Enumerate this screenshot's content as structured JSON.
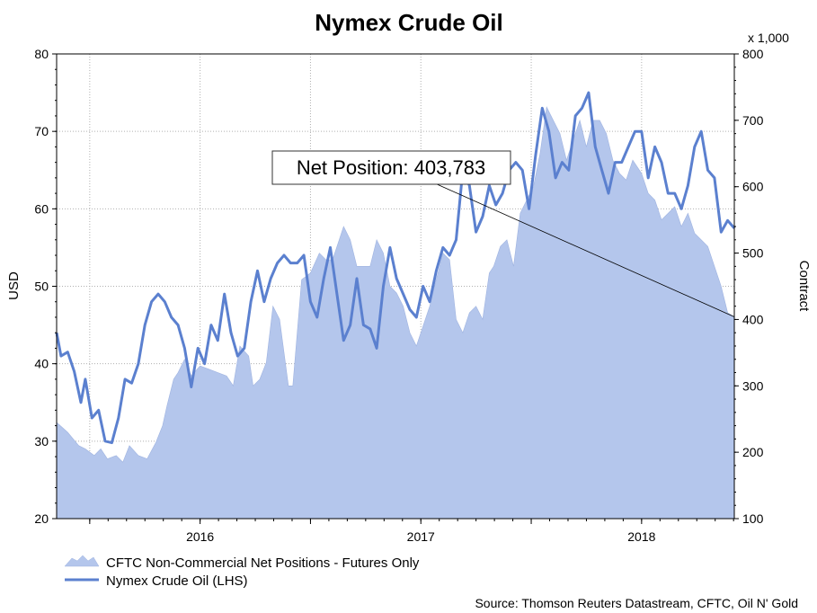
{
  "chart_data": {
    "type": "line",
    "title": "Nymex Crude Oil",
    "y_left_label": "USD",
    "y_right_label": "Contract",
    "y_right_multiplier": "x 1,000",
    "y_left_lim": [
      20,
      80
    ],
    "y_right_lim": [
      100,
      800
    ],
    "y_left_ticks": [
      "20",
      "30",
      "40",
      "50",
      "60",
      "70",
      "80"
    ],
    "y_right_ticks": [
      "100",
      "200",
      "300",
      "400",
      "500",
      "600",
      "700",
      "800"
    ],
    "x_lim": [
      2015.35,
      2018.42
    ],
    "x_ticks": [
      {
        "value": 2016.0,
        "label": "2016"
      },
      {
        "value": 2017.0,
        "label": "2017"
      },
      {
        "value": 2018.0,
        "label": "2018"
      }
    ],
    "x_grid": [
      2015.5,
      2016.0,
      2016.5,
      2017.0,
      2017.5,
      2018.0
    ],
    "grid": true,
    "legend_position": "bottom-left",
    "series": [
      {
        "name": "CFTC Non-Commercial Net Positions - Futures Only",
        "kind": "area",
        "axis": "right",
        "color": "#b4c6ec",
        "x": [
          2015.35,
          2015.4,
          2015.45,
          2015.48,
          2015.52,
          2015.55,
          2015.58,
          2015.62,
          2015.65,
          2015.68,
          2015.72,
          2015.76,
          2015.8,
          2015.83,
          2015.85,
          2015.88,
          2015.9,
          2015.93,
          2015.96,
          2016.0,
          2016.04,
          2016.08,
          2016.12,
          2016.15,
          2016.18,
          2016.22,
          2016.24,
          2016.27,
          2016.3,
          2016.33,
          2016.36,
          2016.4,
          2016.42,
          2016.46,
          2016.5,
          2016.54,
          2016.57,
          2016.6,
          2016.63,
          2016.65,
          2016.68,
          2016.71,
          2016.74,
          2016.77,
          2016.8,
          2016.83,
          2016.86,
          2016.89,
          2016.92,
          2016.95,
          2016.98,
          2017.01,
          2017.04,
          2017.07,
          2017.1,
          2017.13,
          2017.16,
          2017.19,
          2017.22,
          2017.25,
          2017.28,
          2017.31,
          2017.33,
          2017.36,
          2017.39,
          2017.42,
          2017.45,
          2017.48,
          2017.51,
          2017.54,
          2017.57,
          2017.6,
          2017.63,
          2017.66,
          2017.69,
          2017.72,
          2017.75,
          2017.78,
          2017.81,
          2017.84,
          2017.87,
          2017.9,
          2017.93,
          2017.96,
          2018.0,
          2018.03,
          2018.06,
          2018.09,
          2018.12,
          2018.15,
          2018.18,
          2018.21,
          2018.24,
          2018.27,
          2018.3,
          2018.33,
          2018.36,
          2018.39,
          2018.42
        ],
        "values": [
          245,
          230,
          210,
          205,
          195,
          205,
          190,
          195,
          185,
          210,
          195,
          190,
          215,
          240,
          270,
          310,
          320,
          340,
          315,
          330,
          325,
          320,
          315,
          300,
          360,
          345,
          300,
          310,
          335,
          420,
          400,
          300,
          300,
          460,
          470,
          500,
          490,
          490,
          520,
          540,
          520,
          480,
          480,
          480,
          520,
          500,
          450,
          440,
          420,
          380,
          360,
          390,
          420,
          460,
          500,
          490,
          400,
          380,
          410,
          420,
          400,
          470,
          480,
          510,
          520,
          480,
          560,
          580,
          600,
          650,
          720,
          700,
          680,
          640,
          670,
          700,
          660,
          700,
          700,
          680,
          640,
          620,
          610,
          640,
          620,
          590,
          580,
          550,
          560,
          570,
          540,
          560,
          530,
          520,
          510,
          480,
          450,
          410,
          404
        ]
      },
      {
        "name": "Nymex Crude Oil (LHS)",
        "kind": "line",
        "axis": "left",
        "color": "#5b80cf",
        "x": [
          2015.35,
          2015.37,
          2015.4,
          2015.43,
          2015.46,
          2015.48,
          2015.51,
          2015.54,
          2015.57,
          2015.6,
          2015.63,
          2015.66,
          2015.69,
          2015.72,
          2015.75,
          2015.78,
          2015.81,
          2015.84,
          2015.87,
          2015.9,
          2015.93,
          2015.96,
          2015.99,
          2016.02,
          2016.05,
          2016.08,
          2016.11,
          2016.14,
          2016.17,
          2016.2,
          2016.23,
          2016.26,
          2016.29,
          2016.32,
          2016.35,
          2016.38,
          2016.41,
          2016.44,
          2016.47,
          2016.5,
          2016.53,
          2016.56,
          2016.59,
          2016.62,
          2016.65,
          2016.68,
          2016.71,
          2016.74,
          2016.77,
          2016.8,
          2016.83,
          2016.86,
          2016.89,
          2016.92,
          2016.95,
          2016.98,
          2017.01,
          2017.04,
          2017.07,
          2017.1,
          2017.13,
          2017.16,
          2017.19,
          2017.22,
          2017.25,
          2017.28,
          2017.31,
          2017.34,
          2017.37,
          2017.4,
          2017.43,
          2017.46,
          2017.49,
          2017.52,
          2017.55,
          2017.58,
          2017.61,
          2017.64,
          2017.67,
          2017.7,
          2017.73,
          2017.76,
          2017.79,
          2017.82,
          2017.85,
          2017.88,
          2017.91,
          2017.94,
          2017.97,
          2018.0,
          2018.03,
          2018.06,
          2018.09,
          2018.12,
          2018.15,
          2018.18,
          2018.21,
          2018.24,
          2018.27,
          2018.3,
          2018.33,
          2018.36,
          2018.39,
          2018.42
        ],
        "values": [
          44,
          41,
          41.5,
          39,
          35,
          38,
          33,
          34,
          30,
          29.8,
          33,
          38,
          37.5,
          40,
          45,
          48,
          49,
          48,
          46,
          45,
          42,
          37,
          42,
          40,
          45,
          43,
          49,
          44,
          41,
          42,
          48,
          52,
          48,
          51,
          53,
          54,
          53,
          53,
          54,
          48,
          46,
          51,
          55,
          49,
          43,
          45,
          51,
          45,
          44.5,
          42,
          50,
          55,
          51,
          49,
          47,
          46,
          50,
          48,
          52,
          55,
          54,
          56,
          65,
          63,
          57,
          59,
          63,
          60.5,
          62,
          65,
          66,
          65,
          60,
          67,
          73,
          70,
          64,
          66,
          65,
          72,
          73,
          75,
          68,
          65,
          62,
          66,
          66,
          68,
          70,
          70,
          64,
          68,
          66,
          62,
          62,
          60,
          63,
          68,
          70,
          65,
          64,
          57,
          58.5,
          57.5
        ]
      }
    ],
    "annotation": {
      "text": "Net Position: 403,783"
    },
    "legend": [
      {
        "label": "CFTC Non-Commercial Net Positions - Futures Only",
        "kind": "area"
      },
      {
        "label": "Nymex Crude Oil (LHS)",
        "kind": "line"
      }
    ],
    "source": "Source: Thomson Reuters Datastream, CFTC, Oil N' Gold"
  }
}
